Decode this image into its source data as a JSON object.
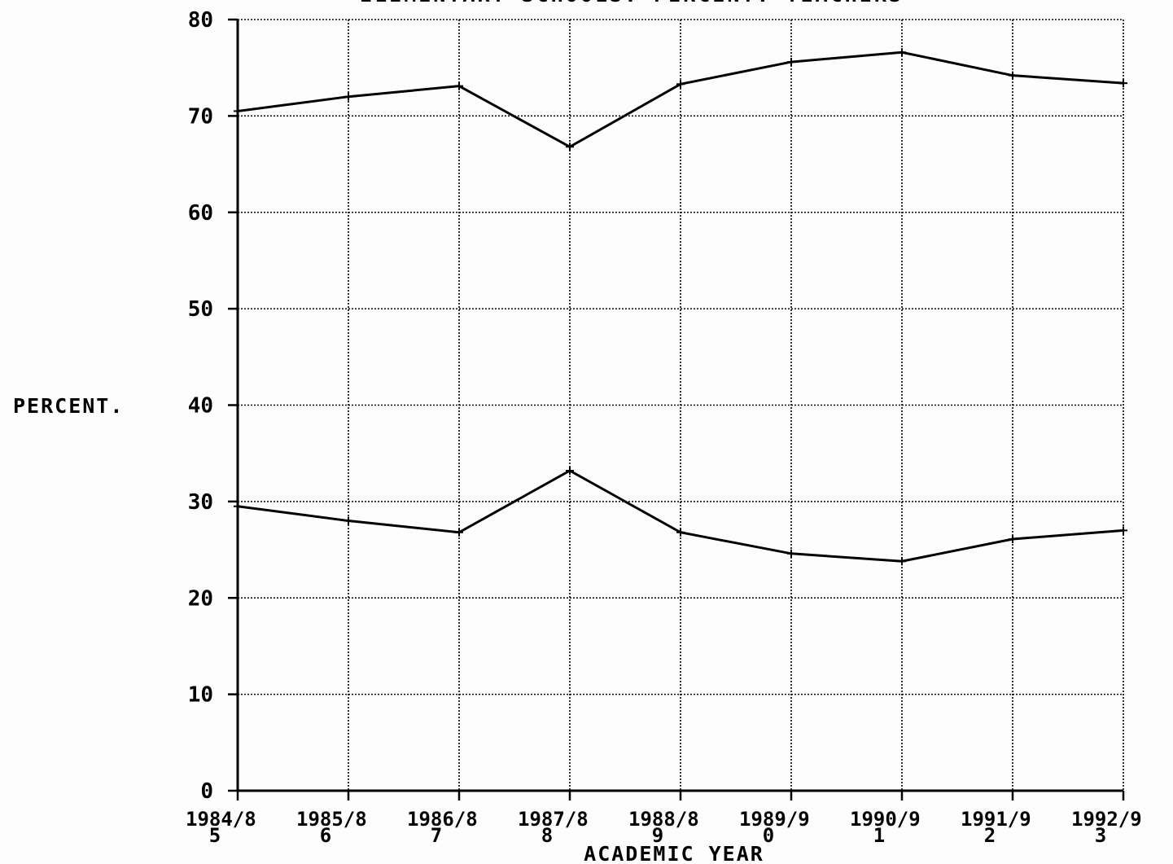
{
  "chart_data": {
    "type": "line",
    "title": "ELEMENTARY SCHOOLS: PERCENT: TEACHERS",
    "xlabel": "ACADEMIC YEAR",
    "ylabel": "PERCENT.",
    "categories": [
      "1984/85",
      "1985/86",
      "1986/87",
      "1987/88",
      "1988/89",
      "1989/90",
      "1990/91",
      "1991/92",
      "1992/93"
    ],
    "category_tick_labels": [
      [
        "1984/8",
        "5"
      ],
      [
        "1985/8",
        "6"
      ],
      [
        "1986/8",
        "7"
      ],
      [
        "1987/8",
        "8"
      ],
      [
        "1988/8",
        "9"
      ],
      [
        "1989/9",
        "0"
      ],
      [
        "1990/9",
        "1"
      ],
      [
        "1991/9",
        "2"
      ],
      [
        "1992/9",
        "3"
      ]
    ],
    "ylim": [
      0,
      80
    ],
    "yticks": [
      "0",
      "10",
      "20",
      "30",
      "40",
      "50",
      "60",
      "70",
      "80"
    ],
    "grid": true,
    "series": [
      {
        "values": [
          70.5,
          72.0,
          73.1,
          66.8,
          73.3,
          75.6,
          76.6,
          74.2,
          73.4
        ]
      },
      {
        "values": [
          29.5,
          28.0,
          26.8,
          33.2,
          26.8,
          24.6,
          23.8,
          26.1,
          27.0
        ]
      }
    ],
    "colors": {
      "line": "#000000",
      "grid": "#000000",
      "background": "#fdfdfd"
    }
  }
}
